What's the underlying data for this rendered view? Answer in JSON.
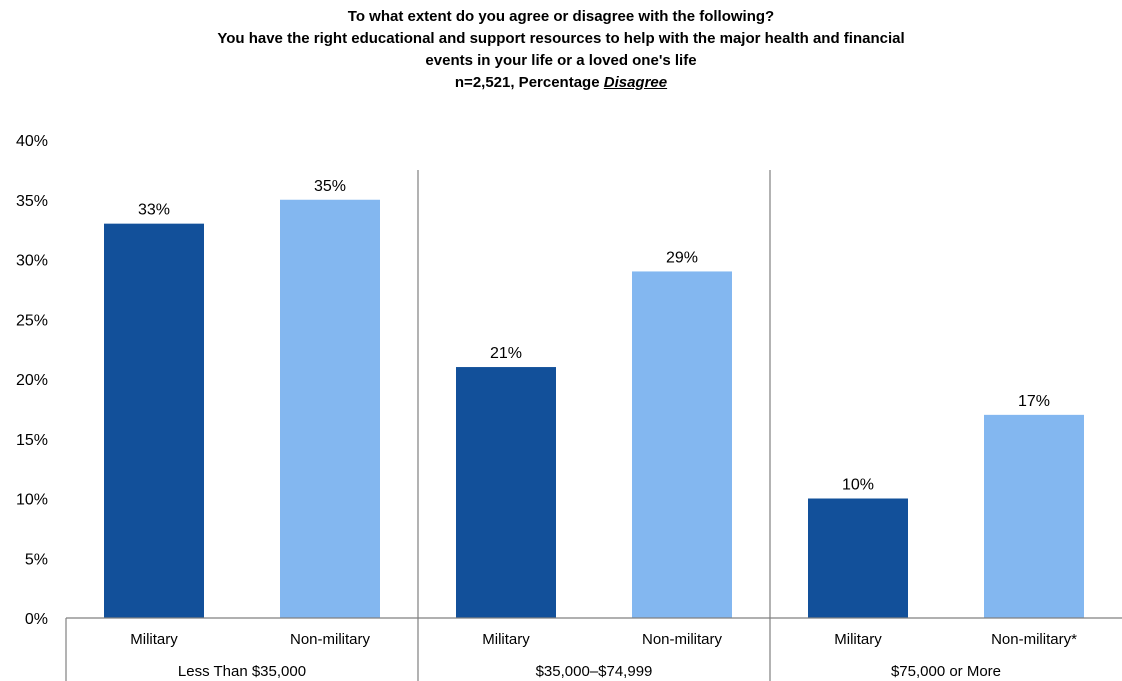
{
  "chart_data": {
    "type": "bar",
    "title_lines": [
      "To what extent do you agree or disagree with the following?",
      "You have the right educational and support resources to help with the major health and financial",
      "events in your life or a loved one's life"
    ],
    "subtitle_prefix": "n=2,521, Percentage ",
    "subtitle_emphasis": "Disagree",
    "ylim": [
      0,
      40
    ],
    "y_ticks": [
      "0%",
      "5%",
      "10%",
      "15%",
      "20%",
      "25%",
      "30%",
      "35%",
      "40%"
    ],
    "grid": false,
    "groups": [
      "Less Than $35,000",
      "$35,000–$74,999",
      "$75,000 or More"
    ],
    "categories": [
      "Military",
      "Non-military",
      "Military",
      "Non-military",
      "Military",
      "Non-military*"
    ],
    "values": [
      33,
      35,
      21,
      29,
      10,
      17
    ],
    "data_labels": [
      "33%",
      "35%",
      "21%",
      "29%",
      "10%",
      "17%"
    ],
    "colors": {
      "military": "#12509A",
      "non_military": "#83B7F0"
    }
  }
}
